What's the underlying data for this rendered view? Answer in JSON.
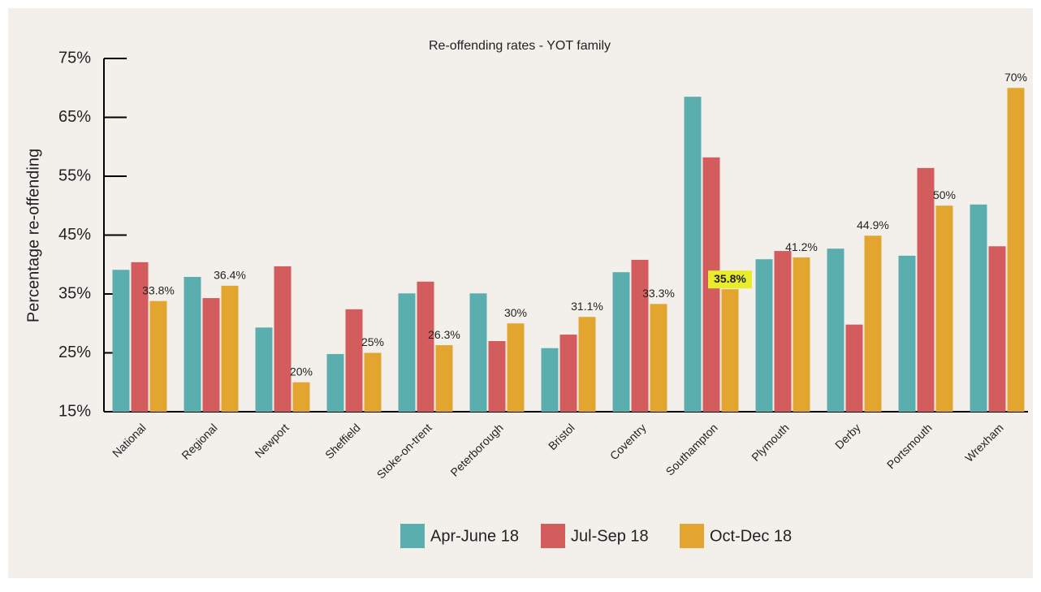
{
  "chart_data": {
    "type": "bar",
    "title": "Re-offending rates - YOT family",
    "y_label": "Percentage re-offending",
    "categories": [
      "National",
      "Regional",
      "Newport",
      "Sheffield",
      "Stoke-on-trent",
      "Peterborough",
      "Bristol",
      "Coventry",
      "Southampton",
      "Plymouth",
      "Derby",
      "Portsmouth",
      "Wrexham"
    ],
    "series": [
      {
        "name": "Apr-June 18",
        "color": "#5aaeae",
        "values": [
          39.1,
          37.9,
          29.3,
          24.8,
          35.1,
          35.1,
          25.8,
          38.7,
          68.5,
          40.9,
          42.7,
          41.5,
          50.2
        ]
      },
      {
        "name": "Jul-Sep 18",
        "color": "#d35c5c",
        "values": [
          40.4,
          34.3,
          39.7,
          32.4,
          37.1,
          27.0,
          28.1,
          40.8,
          58.2,
          42.3,
          29.8,
          56.4,
          43.1
        ]
      },
      {
        "name": "Oct-Dec 18",
        "color": "#e1a530",
        "values": [
          33.8,
          36.4,
          20,
          25,
          26.3,
          30,
          31.1,
          33.3,
          35.8,
          41.2,
          44.9,
          50,
          70
        ],
        "value_labels": [
          "33.8%",
          "36.4%",
          "20%",
          "25%",
          "26.3%",
          "30%",
          "31.1%",
          "33.3%",
          "35.8%",
          "41.2%",
          "44.9%",
          "50%",
          "70%"
        ],
        "highlight_index": 8
      }
    ],
    "ylim": [
      15,
      75
    ],
    "yticks": [
      {
        "value": 15,
        "label": "15%"
      },
      {
        "value": 25,
        "label": "25%"
      },
      {
        "value": 35,
        "label": "35%"
      },
      {
        "value": 45,
        "label": "45%"
      },
      {
        "value": 55,
        "label": "55%"
      },
      {
        "value": 65,
        "label": "65%"
      },
      {
        "value": 75,
        "label": "75%"
      }
    ],
    "grid": false
  }
}
